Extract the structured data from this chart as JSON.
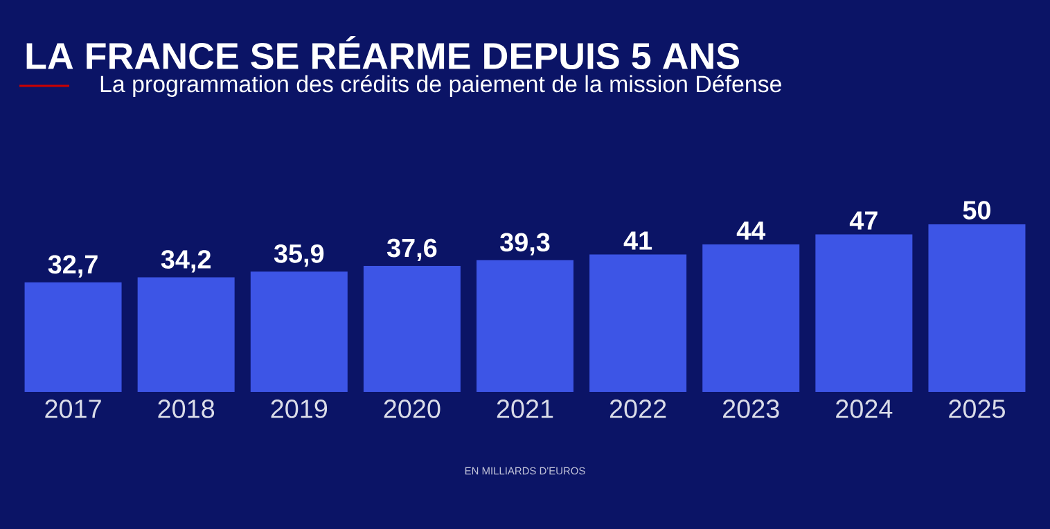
{
  "chart_data": {
    "type": "bar",
    "title": "LA FRANCE SE RÉARME DEPUIS 5 ANS",
    "subtitle": "La programmation des crédits de paiement de la mission Défense",
    "categories": [
      "2017",
      "2018",
      "2019",
      "2020",
      "2021",
      "2022",
      "2023",
      "2024",
      "2025"
    ],
    "values": [
      32.7,
      34.2,
      35.9,
      37.6,
      39.3,
      41,
      44,
      47,
      50
    ],
    "value_labels": [
      "32,7",
      "34,2",
      "35,9",
      "37,6",
      "39,3",
      "41",
      "44",
      "47",
      "50"
    ],
    "color": "#3d55e6",
    "annotations": [
      "EN MILLIARDS D'EUROS"
    ]
  }
}
